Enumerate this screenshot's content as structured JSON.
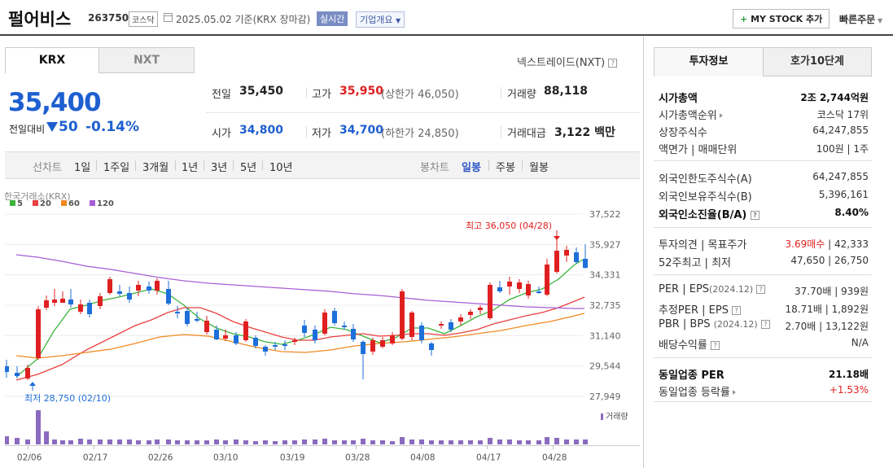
{
  "header": {
    "title": "펄어비스",
    "code": "263750",
    "market_badge": "코스닥",
    "date_text": "2025.05.02  기준(KRX 장마감)",
    "live_badge": "실시간",
    "corp_badge": "기업개요",
    "mystock_label": "MY STOCK 추가",
    "quick_order": "빠른주문"
  },
  "tabs": {
    "krx": "KRX",
    "nxt": "NXT",
    "nxt_link": "넥스트레이드(NXT)"
  },
  "quote": {
    "price": "35,400",
    "change_label": "전일대비",
    "change": "50",
    "change_pct": "-0.14%",
    "prev_label": "전일",
    "prev": "35,450",
    "high_label": "고가",
    "high": "35,950",
    "upper_limit": "(상한가 46,050)",
    "volume_label": "거래량",
    "volume": "88,118",
    "open_label": "시가",
    "open": "34,800",
    "low_label": "저가",
    "low": "34,700",
    "lower_limit": "(하한가 24,850)",
    "amount_label": "거래대금",
    "amount": "3,122 백만"
  },
  "periods": {
    "line_head": "선차트",
    "line_items": [
      "1일",
      "1주일",
      "3개월",
      "1년",
      "3년",
      "5년",
      "10년"
    ],
    "candle_head": "봉차트",
    "candle_items": [
      "일봉",
      "주봉",
      "월봉"
    ],
    "candle_selected": "일봉"
  },
  "chart_data": {
    "type": "candlestick",
    "exchange_label": "한국거래소(KRX)",
    "legend": [
      {
        "name": "5",
        "color": "#3cb43c"
      },
      {
        "name": "20",
        "color": "#e84040"
      },
      {
        "name": "60",
        "color": "#f08a24"
      },
      {
        "name": "120",
        "color": "#a85fd6"
      }
    ],
    "y_ticks": [
      "37,522",
      "35,927",
      "34,331",
      "32,735",
      "31,140",
      "29,544",
      "27,949"
    ],
    "ylim": [
      27949,
      37522
    ],
    "x_ticks": [
      "02/06",
      "02/17",
      "02/26",
      "03/10",
      "03/19",
      "03/28",
      "04/08",
      "04/17",
      "04/28"
    ],
    "high_note": "최고 36,050 (04/28)",
    "low_note": "최저 28,750 (02/10)",
    "volume_label": "거래량",
    "up_color": "#e02020",
    "down_color": "#1e6fd9"
  },
  "invest": {
    "tab_on": "투자정보",
    "tab_off": "호가10단계",
    "rows1": [
      {
        "label": "시가총액",
        "value": "2조 2,744억원"
      },
      {
        "label": "시가총액순위",
        "value": "코스닥 17위"
      },
      {
        "label": "상장주식수",
        "value": "64,247,855"
      },
      {
        "label": "액면가 | 매매단위",
        "value": "100원 | 1주"
      }
    ],
    "rows2": [
      {
        "label": "외국인한도주식수(A)",
        "value": "64,247,855"
      },
      {
        "label": "외국인보유주식수(B)",
        "value": "5,396,161"
      },
      {
        "label": "외국인소진율(B/A)",
        "value": "8.40%"
      }
    ],
    "opinion_label": "투자의견 | 목표주가",
    "opinion_buy": "3.69매수",
    "opinion_target": "| 42,333",
    "w52_label": "52주최고 | 최저",
    "w52_value": "47,650 | 26,750",
    "per_label": "PER | EPS",
    "per_date": "(2024.12)",
    "per_value": "37.70배 | 939원",
    "est_per_label": "추정PER | EPS",
    "est_per_value": "18.71배 | 1,892원",
    "pbr_label": "PBR | BPS",
    "pbr_date": "(2024.12)",
    "pbr_value": "2.70배 | 13,122원",
    "div_label": "배당수익률",
    "div_value": "N/A",
    "sector_per_label": "동일업종 PER",
    "sector_per_value": "21.18배",
    "sector_rate_label": "동일업종 등락률",
    "sector_rate_value": "+1.53%"
  }
}
